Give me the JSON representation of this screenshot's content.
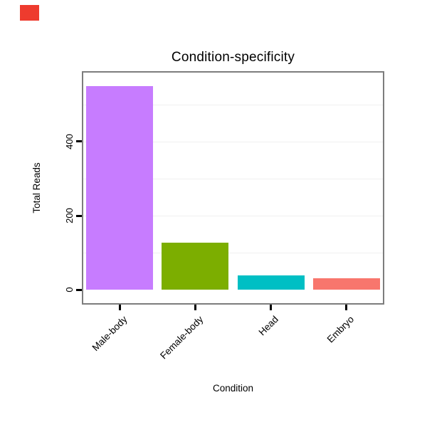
{
  "marker": {
    "color": "#ee3b2e"
  },
  "chart_data": {
    "type": "bar",
    "title": "Condition-specificity",
    "xlabel": "Condition",
    "ylabel": "Total Reads",
    "categories": [
      "Male-body",
      "Female-body",
      "Head",
      "Embryo"
    ],
    "values": [
      550,
      128,
      38,
      32
    ],
    "bar_colors": [
      "#C77CFF",
      "#7CAE00",
      "#00BFC4",
      "#F8766D"
    ],
    "yticks": [
      0,
      200,
      400
    ],
    "gridlines": [
      100,
      200,
      300,
      400,
      500
    ],
    "ylim": [
      -40,
      590
    ],
    "grid": true,
    "legend_position": "none",
    "panel_border_color": "#7d7d7d"
  }
}
